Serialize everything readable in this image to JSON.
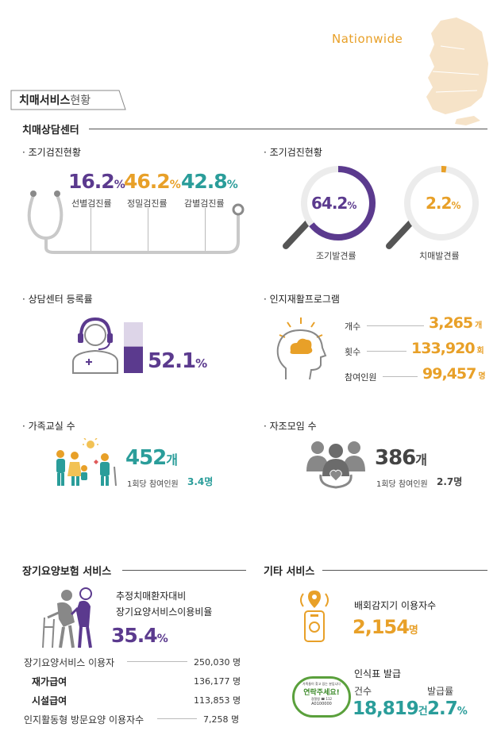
{
  "header": {
    "region": "Nationwide",
    "title_bold": "치매서비스",
    "title_light": "현황"
  },
  "colors": {
    "purple": "#5b3a8e",
    "orange": "#e8a028",
    "teal": "#2a9d9a",
    "gray": "#6b6b6b",
    "map": "#f6e3c8"
  },
  "center": {
    "title": "치매상담센터",
    "screening_rates": {
      "label": "· 조기검진현황",
      "items": [
        {
          "value": "16.2",
          "unit": "%",
          "label": "선별검진률"
        },
        {
          "value": "46.2",
          "unit": "%",
          "label": "정밀검진률"
        },
        {
          "value": "42.8",
          "unit": "%",
          "label": "감별검진률"
        }
      ]
    },
    "detection_rates": {
      "label": "· 조기검진현황",
      "items": [
        {
          "value": "64.2",
          "unit": "%",
          "label": "조기발견률",
          "fraction": 0.642
        },
        {
          "value": "2.2",
          "unit": "%",
          "label": "치매발견률",
          "fraction": 0.022
        }
      ]
    },
    "registration": {
      "label": "· 상담센터 등록률",
      "value": "52.1",
      "unit": "%",
      "fraction": 0.521
    },
    "rehab": {
      "label": "· 인지재활프로그램",
      "rows": [
        {
          "label": "개수",
          "value": "3,265",
          "unit": "개"
        },
        {
          "label": "횟수",
          "value": "133,920",
          "unit": "회"
        },
        {
          "label": "참여인원",
          "value": "99,457",
          "unit": "명"
        }
      ]
    },
    "family_class": {
      "label": "· 가족교실 수",
      "value": "452",
      "unit": "개",
      "sub_label": "1회당 참여인원",
      "sub_value": "3.4명"
    },
    "self_help": {
      "label": "· 자조모임 수",
      "value": "386",
      "unit": "개",
      "sub_label": "1회당 참여인원",
      "sub_value": "2.7명"
    }
  },
  "ltc": {
    "title": "장기요양보험 서비스",
    "ratio_label_1": "추정치매환자대비",
    "ratio_label_2": "장기요양서비스이용비율",
    "ratio_value": "35.4",
    "ratio_unit": "%",
    "rows": [
      {
        "label": "장기요양서비스 이용자",
        "value": "250,030 명"
      },
      {
        "label": "재가급여",
        "value": "136,177 명"
      },
      {
        "label": "시설급여",
        "value": "113,853 명"
      },
      {
        "label": "인지활동형 방문요양 이용자수",
        "value": "7,258 명"
      }
    ]
  },
  "other": {
    "title": "기타 서비스",
    "detector_label": "배회감지기 이용자수",
    "detector_value": "2,154",
    "detector_unit": "명",
    "tag_title": "인식표 발급",
    "count_label": "건수",
    "count_value": "18,819",
    "count_unit": "건",
    "rate_label": "발급률",
    "rate_value": "2.7",
    "rate_unit": "%",
    "badge_top": "가족들이 찾고 있는 분입니다",
    "badge_main": "연락주세요!",
    "badge_sub": "경찰청 ☎ 112",
    "badge_code": "A0100000"
  },
  "chart_data": [
    {
      "type": "bar",
      "title": "조기검진현황",
      "categories": [
        "선별검진률",
        "정밀검진률",
        "감별검진률"
      ],
      "values": [
        16.2,
        46.2,
        42.8
      ],
      "unit": "%"
    },
    {
      "type": "pie",
      "title": "조기검진현황",
      "categories": [
        "조기발견률",
        "치매발견률"
      ],
      "values": [
        64.2,
        2.2
      ],
      "unit": "%"
    },
    {
      "type": "bar",
      "title": "상담센터 등록률",
      "values": [
        52.1
      ],
      "unit": "%"
    },
    {
      "type": "table",
      "title": "인지재활프로그램",
      "categories": [
        "개수",
        "횟수",
        "참여인원"
      ],
      "values": [
        3265,
        133920,
        99457
      ]
    },
    {
      "type": "table",
      "title": "장기요양보험 서비스",
      "categories": [
        "장기요양서비스 이용자",
        "재가급여",
        "시설급여",
        "인지활동형 방문요양 이용자수"
      ],
      "values": [
        250030,
        136177,
        113853,
        7258
      ]
    }
  ]
}
